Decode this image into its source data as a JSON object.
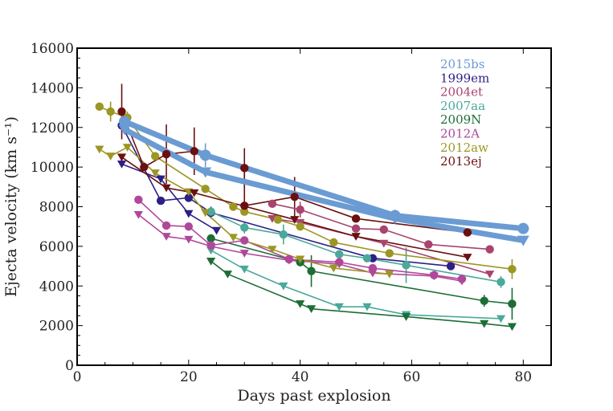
{
  "chart_data": {
    "type": "scatter",
    "title": "",
    "xlabel": "Days past explosion",
    "ylabel": "Ejecta velocity (km s⁻¹)",
    "xlim": [
      0,
      85
    ],
    "ylim": [
      0,
      16000
    ],
    "xticks": [
      0,
      20,
      40,
      60,
      80
    ],
    "yticks": [
      0,
      2000,
      4000,
      6000,
      8000,
      10000,
      12000,
      14000,
      16000
    ],
    "legend_position": "top-right",
    "series": [
      {
        "name": "2015bs",
        "color": "#6a9bd3",
        "highlight": true,
        "circles": [
          [
            8.5,
            12300
          ],
          [
            23,
            10600
          ],
          [
            57,
            7550
          ],
          [
            80,
            6900
          ]
        ],
        "circle_errors": [
          0,
          600,
          300,
          0
        ],
        "triangles": [
          [
            8.5,
            11900
          ],
          [
            23,
            9750
          ],
          [
            57,
            7400
          ],
          [
            80,
            6300
          ]
        ]
      },
      {
        "name": "1999em",
        "color": "#2c1f86",
        "circles": [
          [
            8,
            12100
          ],
          [
            15,
            8300
          ],
          [
            20,
            8450
          ],
          [
            24,
            7700
          ],
          [
            53,
            5400
          ],
          [
            67,
            5000
          ]
        ],
        "circle_errors": [
          0,
          0,
          0,
          300,
          0,
          0
        ],
        "triangles": [
          [
            8,
            10150
          ],
          [
            15,
            9400
          ],
          [
            20,
            7650
          ],
          [
            25,
            6800
          ]
        ]
      },
      {
        "name": "2004et",
        "color": "#a8446e",
        "circles": [
          [
            35,
            8150
          ],
          [
            40,
            7850
          ],
          [
            50,
            6900
          ],
          [
            55,
            6850
          ],
          [
            63,
            6100
          ],
          [
            74,
            5850
          ]
        ],
        "circle_errors": [
          0,
          400,
          0,
          0,
          0,
          0
        ],
        "triangles": [
          [
            35,
            7400
          ],
          [
            40,
            7200
          ],
          [
            55,
            6150
          ],
          [
            74,
            4600
          ]
        ]
      },
      {
        "name": "2007aa",
        "color": "#4aa99a",
        "circles": [
          [
            24,
            7750
          ],
          [
            30,
            6950
          ],
          [
            37,
            6600
          ],
          [
            47,
            5600
          ],
          [
            52,
            5400
          ],
          [
            59,
            5050
          ],
          [
            76,
            4200
          ]
        ],
        "circle_errors": [
          0,
          300,
          500,
          0,
          0,
          900,
          300
        ],
        "triangles": [
          [
            24,
            5800
          ],
          [
            30,
            4850
          ],
          [
            37,
            4000
          ],
          [
            47,
            2950
          ],
          [
            52,
            2950
          ],
          [
            59,
            2550
          ],
          [
            76,
            2350
          ]
        ]
      },
      {
        "name": "2009N",
        "color": "#1c6e35",
        "circles": [
          [
            24,
            6400
          ],
          [
            40,
            5200
          ],
          [
            42,
            4750
          ],
          [
            73,
            3250
          ],
          [
            78,
            3100
          ]
        ],
        "circle_errors": [
          0,
          200,
          800,
          300,
          800
        ],
        "triangles": [
          [
            24,
            5250
          ],
          [
            27,
            4600
          ],
          [
            40,
            3100
          ],
          [
            42,
            2850
          ],
          [
            59,
            2450
          ],
          [
            73,
            2100
          ],
          [
            78,
            1950
          ]
        ]
      },
      {
        "name": "2012A",
        "color": "#b0479b",
        "circles": [
          [
            11,
            8350
          ],
          [
            16,
            7050
          ],
          [
            20,
            7000
          ],
          [
            24,
            6050
          ],
          [
            30,
            6300
          ],
          [
            38,
            5350
          ],
          [
            47,
            5200
          ],
          [
            53,
            4900
          ],
          [
            64,
            4550
          ],
          [
            69,
            4350
          ]
        ],
        "circle_errors": [
          0,
          0,
          0,
          0,
          0,
          0,
          0,
          0,
          0,
          0
        ],
        "triangles": [
          [
            11,
            7600
          ],
          [
            16,
            6500
          ],
          [
            20,
            6350
          ],
          [
            24,
            6000
          ],
          [
            30,
            5650
          ],
          [
            38,
            5300
          ],
          [
            47,
            5100
          ],
          [
            53,
            4650
          ],
          [
            64,
            4500
          ],
          [
            69,
            4250
          ]
        ]
      },
      {
        "name": "2012aw",
        "color": "#9c9624",
        "circles": [
          [
            4,
            13050
          ],
          [
            6,
            12800
          ],
          [
            9,
            12500
          ],
          [
            14,
            10550
          ],
          [
            23,
            8900
          ],
          [
            28,
            8000
          ],
          [
            30,
            7750
          ],
          [
            36,
            7350
          ],
          [
            40,
            7000
          ],
          [
            46,
            6200
          ],
          [
            56,
            5650
          ],
          [
            78,
            4850
          ]
        ],
        "circle_errors": [
          200,
          500,
          300,
          0,
          0,
          0,
          0,
          0,
          0,
          0,
          0,
          500
        ],
        "triangles": [
          [
            4,
            10900
          ],
          [
            6,
            10550
          ],
          [
            9,
            11000
          ],
          [
            14,
            9700
          ],
          [
            20,
            8750
          ],
          [
            23,
            7700
          ],
          [
            28,
            6450
          ],
          [
            35,
            5850
          ],
          [
            40,
            5350
          ],
          [
            46,
            4900
          ],
          [
            56,
            4600
          ]
        ]
      },
      {
        "name": "2013ej",
        "color": "#6b1010",
        "circles": [
          [
            8,
            12800
          ],
          [
            12,
            10000
          ],
          [
            16,
            10650
          ],
          [
            21,
            10800
          ],
          [
            30,
            9950
          ],
          [
            30,
            8050
          ],
          [
            39,
            8500
          ],
          [
            50,
            7400
          ],
          [
            70,
            6700
          ]
        ],
        "circle_errors": [
          1400,
          0,
          1500,
          1200,
          1000,
          0,
          1000,
          0,
          0
        ],
        "triangles": [
          [
            8,
            10500
          ],
          [
            16,
            8950
          ],
          [
            21,
            8700
          ],
          [
            39,
            7350
          ],
          [
            50,
            6500
          ],
          [
            70,
            5450
          ]
        ]
      }
    ]
  }
}
